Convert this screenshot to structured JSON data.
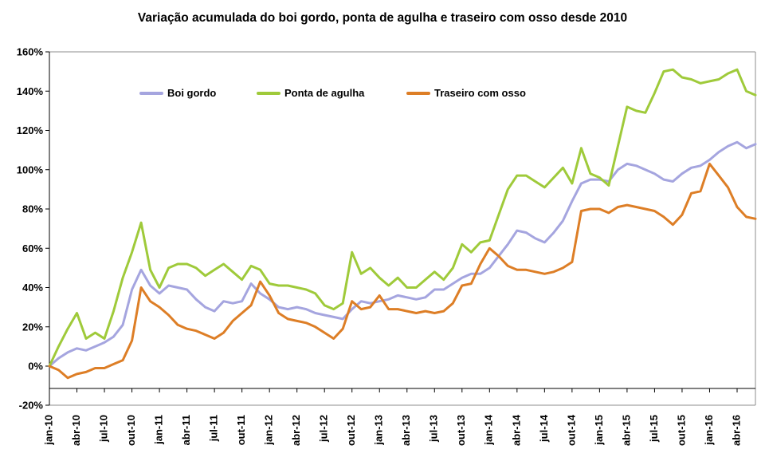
{
  "title": "Variação acumulada do boi gordo, ponta de agulha e traseiro com osso desde 2010",
  "legend": [
    {
      "label": "Boi gordo",
      "color": "#A5A5DF"
    },
    {
      "label": "Ponta de agulha",
      "color": "#9FCA3A"
    },
    {
      "label": "Traseiro com osso",
      "color": "#DD7E26"
    }
  ],
  "colors": {
    "axis": "#000000",
    "plot_border": "#8C8C8C",
    "background": "#FFFFFF"
  },
  "chart_data": {
    "type": "line",
    "title": "Variação acumulada do boi gordo, ponta de agulha e traseiro com osso desde 2010",
    "xlabel": "",
    "ylabel": "",
    "ylim": [
      -20,
      160
    ],
    "grid": false,
    "legend_position": "top-inside",
    "y_tick_labels": [
      "160%",
      "140%",
      "120%",
      "100%",
      "80%",
      "60%",
      "40%",
      "20%",
      "0%",
      "-20%"
    ],
    "x_tick_every": 3,
    "x_tick_labels": [
      "jan-10",
      "abr-10",
      "jul-10",
      "out-10",
      "jan-11",
      "abr-11",
      "jul-11",
      "out-11",
      "jan-12",
      "abr-12",
      "jul-12",
      "out-12",
      "jan-13",
      "abr-13",
      "jul-13",
      "out-13",
      "jan-14",
      "abr-14",
      "jul-14",
      "out-14",
      "jan-15",
      "abr-15",
      "jul-15",
      "out-15",
      "jan-16",
      "abr-16"
    ],
    "categories": [
      "jan-10",
      "fev-10",
      "mar-10",
      "abr-10",
      "mai-10",
      "jun-10",
      "jul-10",
      "ago-10",
      "set-10",
      "out-10",
      "nov-10",
      "dez-10",
      "jan-11",
      "fev-11",
      "mar-11",
      "abr-11",
      "mai-11",
      "jun-11",
      "jul-11",
      "ago-11",
      "set-11",
      "out-11",
      "nov-11",
      "dez-11",
      "jan-12",
      "fev-12",
      "mar-12",
      "abr-12",
      "mai-12",
      "jun-12",
      "jul-12",
      "ago-12",
      "set-12",
      "out-12",
      "nov-12",
      "dez-12",
      "jan-13",
      "fev-13",
      "mar-13",
      "abr-13",
      "mai-13",
      "jun-13",
      "jul-13",
      "ago-13",
      "set-13",
      "out-13",
      "nov-13",
      "dez-13",
      "jan-14",
      "fev-14",
      "mar-14",
      "abr-14",
      "mai-14",
      "jun-14",
      "jul-14",
      "ago-14",
      "set-14",
      "out-14",
      "nov-14",
      "dez-14",
      "jan-15",
      "fev-15",
      "mar-15",
      "abr-15",
      "mai-15",
      "jun-15",
      "jul-15",
      "ago-15",
      "set-15",
      "out-15",
      "nov-15",
      "dez-15",
      "jan-16",
      "fev-16",
      "mar-16",
      "abr-16",
      "mai-16",
      "jun-16"
    ],
    "series": [
      {
        "name": "Boi gordo",
        "color": "#A5A5DF",
        "values": [
          0,
          4,
          7,
          9,
          8,
          10,
          12,
          15,
          21,
          39,
          49,
          41,
          37,
          41,
          40,
          39,
          34,
          30,
          28,
          33,
          32,
          33,
          42,
          37,
          34,
          30,
          29,
          30,
          29,
          27,
          26,
          25,
          24,
          29,
          33,
          32,
          33,
          34,
          36,
          35,
          34,
          35,
          39,
          39,
          42,
          45,
          47,
          47,
          50,
          56,
          62,
          69,
          68,
          65,
          63,
          68,
          74,
          84,
          93,
          95,
          95,
          94,
          100,
          103,
          102,
          100,
          98,
          95,
          94,
          98,
          101,
          102,
          105,
          109,
          112,
          114,
          111,
          113
        ]
      },
      {
        "name": "Ponta de agulha",
        "color": "#9FCA3A",
        "values": [
          0,
          10,
          19,
          27,
          14,
          17,
          14,
          28,
          45,
          58,
          73,
          49,
          40,
          50,
          52,
          52,
          50,
          46,
          49,
          52,
          48,
          44,
          51,
          49,
          42,
          41,
          41,
          40,
          39,
          37,
          31,
          29,
          32,
          58,
          47,
          50,
          45,
          41,
          45,
          40,
          40,
          44,
          48,
          44,
          50,
          62,
          58,
          63,
          64,
          77,
          90,
          97,
          97,
          94,
          91,
          96,
          101,
          93,
          111,
          98,
          96,
          92,
          112,
          132,
          130,
          129,
          139,
          150,
          151,
          147,
          146,
          144,
          145,
          146,
          149,
          151,
          140,
          138
        ]
      },
      {
        "name": "Traseiro com osso",
        "color": "#DD7E26",
        "values": [
          0,
          -2,
          -6,
          -4,
          -3,
          -1,
          -1,
          1,
          3,
          13,
          40,
          33,
          30,
          26,
          21,
          19,
          18,
          16,
          14,
          17,
          23,
          27,
          31,
          43,
          36,
          27,
          24,
          23,
          22,
          20,
          17,
          14,
          19,
          33,
          29,
          30,
          36,
          29,
          29,
          28,
          27,
          28,
          27,
          28,
          32,
          41,
          42,
          52,
          60,
          56,
          51,
          49,
          49,
          48,
          47,
          48,
          50,
          53,
          79,
          80,
          80,
          78,
          81,
          82,
          81,
          80,
          79,
          76,
          72,
          77,
          88,
          89,
          103,
          97,
          91,
          81,
          76,
          75
        ]
      }
    ]
  }
}
